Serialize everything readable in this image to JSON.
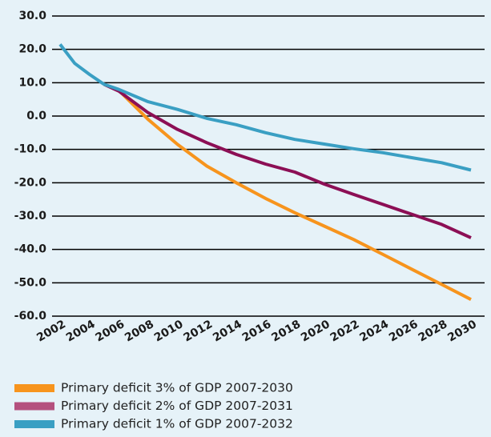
{
  "chart_data": {
    "type": "line",
    "x": [
      2002,
      2003,
      2004,
      2005,
      2006,
      2008,
      2010,
      2012,
      2014,
      2016,
      2018,
      2020,
      2022,
      2024,
      2026,
      2028,
      2030
    ],
    "xlim": [
      2002,
      2030
    ],
    "xticks": [
      2002,
      2004,
      2006,
      2008,
      2010,
      2012,
      2014,
      2016,
      2018,
      2020,
      2022,
      2024,
      2026,
      2028,
      2030
    ],
    "ylim": [
      -60,
      30
    ],
    "yticks": [
      {
        "value": 30,
        "label": "30.0"
      },
      {
        "value": 20,
        "label": "20.0"
      },
      {
        "value": 10,
        "label": "10.0"
      },
      {
        "value": 0,
        "label": "0.0"
      },
      {
        "value": -10,
        "label": "-10.0"
      },
      {
        "value": -20,
        "label": "-20.0"
      },
      {
        "value": -30,
        "label": "-30.0"
      },
      {
        "value": -40,
        "label": "-40.0"
      },
      {
        "value": -50,
        "label": "-50.0"
      },
      {
        "value": -60,
        "label": "-60.0"
      }
    ],
    "grid": true,
    "series": [
      {
        "name": "Primary deficit 3% of GDP 2007-2030",
        "color": "#f7941d",
        "legend_color": "#f7941d",
        "values": [
          null,
          null,
          null,
          9.5,
          7.7,
          -1,
          -8.5,
          -15,
          -20,
          -24.7,
          -29,
          -33,
          -37,
          -41.5,
          -46,
          -50.5,
          -55
        ]
      },
      {
        "name": "Primary deficit 2% of GDP 2007-2031",
        "color": "#8c0f55",
        "legend_color": "#b4507e",
        "values": [
          null,
          null,
          null,
          9.5,
          7.5,
          1,
          -4,
          -8,
          -11.5,
          -14.4,
          -16.8,
          -20.4,
          -23.5,
          -26.5,
          -29.5,
          -32.5,
          -36.5
        ]
      },
      {
        "name": "Primary deficit 1% of GDP 2007-2032",
        "color": "#3a9fc3",
        "legend_color": "#3a9fc3",
        "values": [
          21.5,
          15.8,
          12.5,
          9.5,
          8,
          4.3,
          2,
          -0.7,
          -2.6,
          -5,
          -7,
          -8.4,
          -9.8,
          -11,
          -12.5,
          -14,
          -16.2
        ]
      }
    ]
  }
}
